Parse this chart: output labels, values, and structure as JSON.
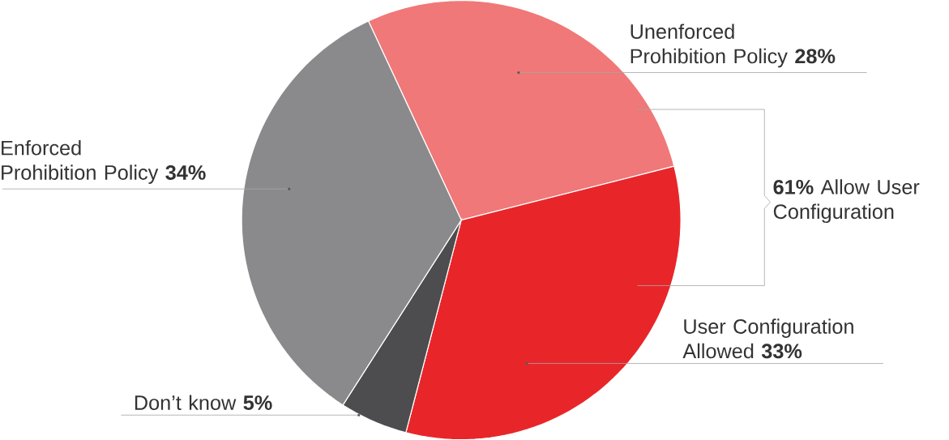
{
  "chart_data": {
    "type": "pie",
    "categories": [
      "Unenforced Prohibition Policy",
      "User Configuration Allowed",
      "Don’t know",
      "Enforced Prohibition Policy"
    ],
    "values": [
      28,
      33,
      5,
      34
    ],
    "value_labels": [
      "28%",
      "33%",
      "5%",
      "34%"
    ],
    "colors": [
      "#f07878",
      "#e8262a",
      "#4d4d4f",
      "#8a8a8c"
    ],
    "annotations": [
      "**61%** Allow User Configuration"
    ]
  }
}
